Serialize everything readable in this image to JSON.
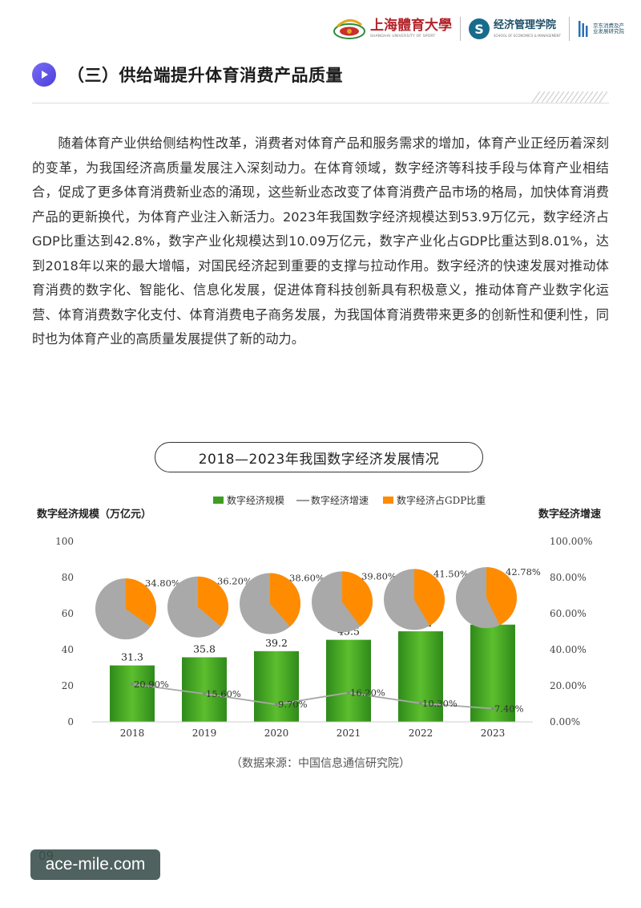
{
  "header": {
    "university_name": "上海體育大學",
    "university_name_en": "SHANGHAI UNIVERSITY OF SPORT",
    "school_badge": "S",
    "school_name": "经济管理学院",
    "school_name_en": "SCHOOL OF ECONOMICS & MANAGEMENT",
    "institute_name": "京东消费及产业发展研究院"
  },
  "section": {
    "heading": "（三）供给端提升体育消费产品质量",
    "paragraph": "随着体育产业供给侧结构性改革，消费者对体育产品和服务需求的增加，体育产业正经历着深刻的变革，为我国经济高质量发展注入深刻动力。在体育领域，数字经济等科技手段与体育产业相结合，促成了更多体育消费新业态的涌现，这些新业态改变了体育消费产品市场的格局，加快体育消费产品的更新换代，为体育产业注入新活力。2023年我国数字经济规模达到53.9万亿元，数字经济占GDP比重达到42.8%，数字产业化规模达到10.09万亿元，数字产业化占GDP比重达到8.01%，达到2018年以来的最大增幅，对国民经济起到重要的支撑与拉动作用。数字经济的快速发展对推动体育消费的数字化、智能化、信息化发展，促进体育科技创新具有积极意义，推动体育产业数字化运营、体育消费数字化支付、体育消费电子商务发展，为我国体育消费带来更多的创新性和便利性，同时也为体育产业的高质量发展提供了新的动力。"
  },
  "chart_data": {
    "type": "bar",
    "title": "2018—2023年我国数字经济发展情况",
    "categories": [
      "2018",
      "2019",
      "2020",
      "2021",
      "2022",
      "2023"
    ],
    "ylabel_left": "数字经济规模（万亿元）",
    "ylabel_right": "数字经济增速",
    "ylim_left": [
      0,
      100
    ],
    "ylim_right": [
      0,
      100
    ],
    "yticks_left": [
      "0",
      "20",
      "40",
      "60",
      "80",
      "100"
    ],
    "yticks_right": [
      "0.00%",
      "20.00%",
      "40.00%",
      "60.00%",
      "80.00%",
      "100.00%"
    ],
    "legend_position": "top-center",
    "series": [
      {
        "name": "数字经济规模",
        "kind": "bar",
        "color": "#3f9e22",
        "values": [
          31.3,
          35.8,
          39.2,
          45.5,
          50.2,
          53.9
        ],
        "labels": [
          "31.3",
          "35.8",
          "39.2",
          "45.5",
          "50.2",
          "53.9"
        ]
      },
      {
        "name": "数字经济增速",
        "kind": "line",
        "color": "#a8a8a8",
        "values": [
          20.9,
          15.6,
          9.7,
          16.2,
          10.3,
          7.4
        ],
        "labels": [
          "20.90%",
          "15.60%",
          "9.70%",
          "16.20%",
          "10.30%",
          "7.40%"
        ]
      },
      {
        "name": "数字经济占GDP比重",
        "kind": "pie",
        "color": "#ff8c00",
        "rest_color": "#a9a9a9",
        "values": [
          34.8,
          36.2,
          38.6,
          39.8,
          41.5,
          42.78
        ],
        "labels": [
          "34.80%",
          "36.20%",
          "38.60%",
          "39.80%",
          "41.50%",
          "42.78%"
        ]
      }
    ],
    "legend": [
      "数字经济规模",
      "数字经济增速",
      "数字经济占GDP比重"
    ],
    "source": "（数据来源：中国信息通信研究院）"
  },
  "footer": {
    "page_number": "09",
    "watermark": "ace-mile.com"
  }
}
